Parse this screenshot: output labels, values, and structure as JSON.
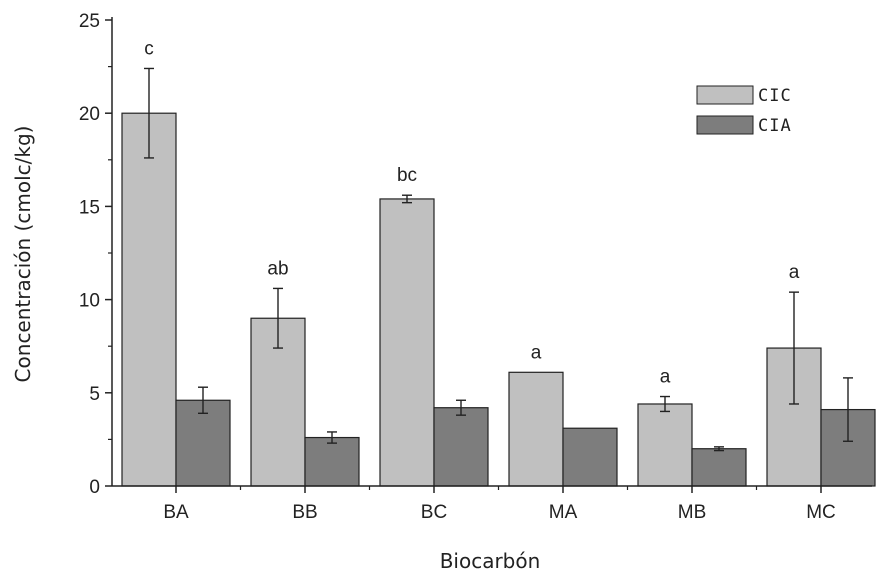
{
  "chart_data": {
    "type": "bar",
    "title": "",
    "xlabel": "Biocarbón",
    "ylabel": "Concentración (cmolc/kg)",
    "ylim": [
      0,
      25
    ],
    "yticks": [
      0,
      5,
      10,
      15,
      20,
      25
    ],
    "categories": [
      "BA",
      "BB",
      "BC",
      "MA",
      "MB",
      "MC"
    ],
    "series": [
      {
        "name": "CIC",
        "color": "#c0c0c0",
        "values": [
          20.0,
          9.0,
          15.4,
          6.1,
          4.4,
          7.4
        ],
        "errors": [
          2.4,
          1.6,
          0.2,
          0.0,
          0.4,
          3.0
        ]
      },
      {
        "name": "CIA",
        "color": "#7d7d7d",
        "values": [
          4.6,
          2.6,
          4.2,
          3.1,
          2.0,
          4.1
        ],
        "errors": [
          0.7,
          0.3,
          0.4,
          0.0,
          0.1,
          1.7
        ]
      }
    ],
    "significance_labels": [
      "c",
      "ab",
      "bc",
      "a",
      "a",
      "a"
    ],
    "legend_position": "top-right",
    "grid": false
  }
}
